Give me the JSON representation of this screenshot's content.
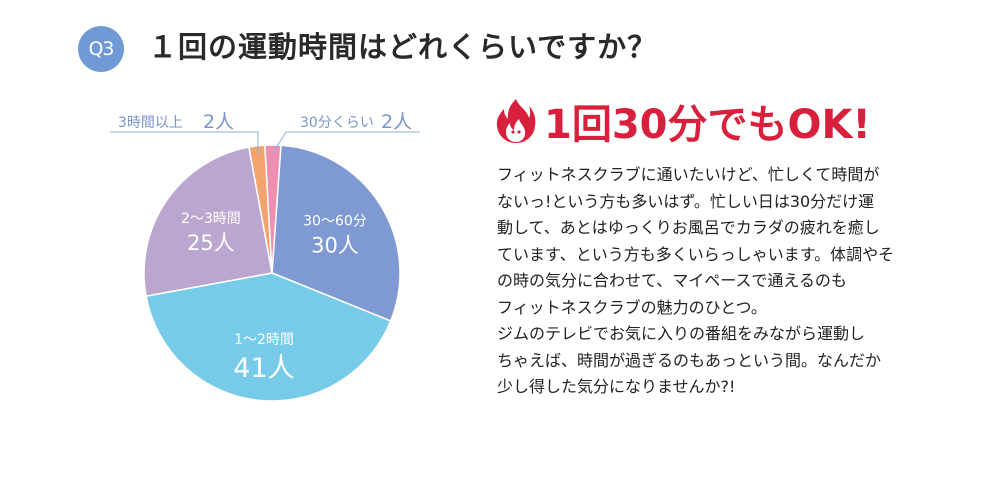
{
  "header": {
    "badge": "Q3",
    "title": "１回の運動時間はどれくらいですか？"
  },
  "colors": {
    "badge": "#6f9ad6",
    "headline": "#d8203c",
    "label_text": "#7a95c9",
    "label_line": "#8fb0dc"
  },
  "chart_data": {
    "type": "pie",
    "slices": [
      {
        "label": "30〜60分",
        "value": 30,
        "unit": "人",
        "color": "#7f99d2"
      },
      {
        "label": "1〜2時間",
        "value": 41,
        "unit": "人",
        "color": "#77cbe8"
      },
      {
        "label": "2〜3時間",
        "value": 25,
        "unit": "人",
        "color": "#bba6cf"
      },
      {
        "label": "3時間以上",
        "value": 2,
        "unit": "人",
        "color": "#f3a36d"
      },
      {
        "label": "30分くらい",
        "value": 2,
        "unit": "人",
        "color": "#ee8eb1"
      }
    ],
    "callouts": [
      {
        "text": "3時間以上",
        "count": "2人"
      },
      {
        "text": "30分くらい",
        "count": "2人"
      }
    ]
  },
  "headline": {
    "icon": "flame-icon",
    "text": "1回30分でもOK!"
  },
  "body": {
    "lines": [
      "フィットネスクラブに通いたいけど、忙しくて時間が",
      "ないっ!という方も多いはず。忙しい日は30分だけ運",
      "動して、あとはゆっくりお風呂でカラダの疲れを癒し",
      "ています、という方も多くいらっしゃいます。体調やそ",
      "の時の気分に合わせて、マイペースで通えるのも",
      "フィットネスクラブの魅力のひとつ。",
      "ジムのテレビでお気に入りの番組をみながら運動し",
      "ちゃえば、時間が過ぎるのもあっという間。なんだか",
      "少し得した気分になりませんか?!"
    ]
  }
}
